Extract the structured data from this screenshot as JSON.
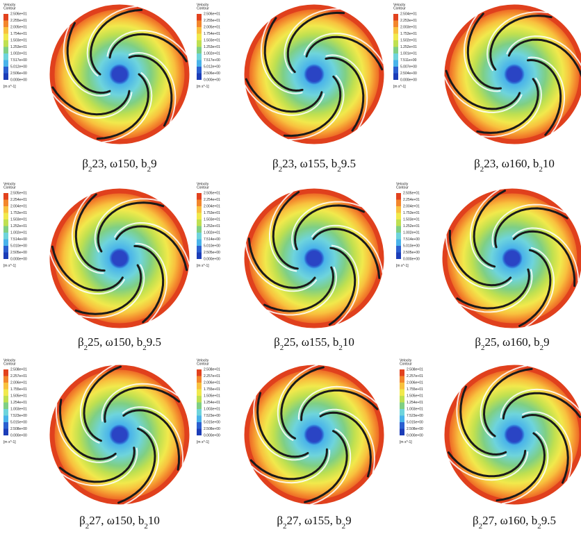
{
  "panels": [
    {
      "caption": [
        "β",
        "2",
        "23, ω150, b",
        "2",
        "9"
      ],
      "legend": {
        "title": [
          "Velocity",
          "Contour"
        ],
        "ticks": [
          "2.506e+01",
          "2.255e+01",
          "2.005e+01",
          "1.754e+01",
          "1.503e+01",
          "1.253e+01",
          "1.002e+01",
          "7.517e+00",
          "5.012e+00",
          "2.506e+00",
          "0.000e+00"
        ],
        "unit": "[m s^-1]"
      }
    },
    {
      "caption": [
        "β",
        "2",
        "23, ω155, b",
        "2",
        "9.5"
      ],
      "legend": {
        "title": [
          "Velocity",
          "Contour"
        ],
        "ticks": [
          "2.506e+01",
          "2.255e+01",
          "2.005e+01",
          "1.754e+01",
          "1.503e+01",
          "1.253e+01",
          "1.002e+01",
          "7.517e+00",
          "5.012e+00",
          "2.506e+00",
          "0.000e+00"
        ],
        "unit": "[m s^-1]"
      }
    },
    {
      "caption": [
        "β",
        "2",
        "23, ω160, b",
        "2",
        "10"
      ],
      "legend": {
        "title": [
          "Velocity",
          "Contour"
        ],
        "ticks": [
          "2.504e+01",
          "2.253e+01",
          "2.003e+01",
          "1.753e+01",
          "1.502e+01",
          "1.252e+01",
          "1.001e+01",
          "7.511e+00",
          "5.007e+00",
          "2.504e+00",
          "0.000e+00"
        ],
        "unit": "[m s^-1]"
      }
    },
    {
      "caption": [
        "β",
        "2",
        "25, ω150, b",
        "2",
        "9.5"
      ],
      "legend": {
        "title": [
          "Velocity",
          "Contour"
        ],
        "ticks": [
          "2.505e+01",
          "2.254e+01",
          "2.004e+01",
          "1.753e+01",
          "1.503e+01",
          "1.252e+01",
          "1.002e+01",
          "7.514e+00",
          "5.010e+00",
          "2.505e+00",
          "0.000e+00"
        ],
        "unit": "[m s^-1]"
      }
    },
    {
      "caption": [
        "β",
        "2",
        "25, ω155, b",
        "2",
        "10"
      ],
      "legend": {
        "title": [
          "Velocity",
          "Contour"
        ],
        "ticks": [
          "2.505e+01",
          "2.254e+01",
          "2.004e+01",
          "1.753e+01",
          "1.503e+01",
          "1.252e+01",
          "1.002e+01",
          "7.514e+00",
          "5.010e+00",
          "2.505e+00",
          "0.000e+00"
        ],
        "unit": "[m s^-1]"
      }
    },
    {
      "caption": [
        "β",
        "2",
        "25, ω160, b",
        "2",
        "9"
      ],
      "legend": {
        "title": [
          "Velocity",
          "Contour"
        ],
        "ticks": [
          "2.505e+01",
          "2.254e+01",
          "2.004e+01",
          "1.753e+01",
          "1.503e+01",
          "1.252e+01",
          "1.002e+01",
          "7.514e+00",
          "5.010e+00",
          "2.505e+00",
          "0.000e+00"
        ],
        "unit": "[m s^-1]"
      }
    },
    {
      "caption": [
        "β",
        "2",
        "27, ω150, b",
        "2",
        "10"
      ],
      "legend": {
        "title": [
          "Velocity",
          "Contour"
        ],
        "ticks": [
          "2.508e+01",
          "2.257e+01",
          "2.006e+01",
          "1.755e+01",
          "1.505e+01",
          "1.254e+01",
          "1.003e+01",
          "7.523e+00",
          "5.015e+00",
          "2.508e+00",
          "0.000e+00"
        ],
        "unit": "[m s^-1]"
      }
    },
    {
      "caption": [
        "β",
        "2",
        "27, ω155, b",
        "2",
        "9"
      ],
      "legend": {
        "title": [
          "Velocity",
          "Contour"
        ],
        "ticks": [
          "2.508e+01",
          "2.257e+01",
          "2.006e+01",
          "1.755e+01",
          "1.505e+01",
          "1.254e+01",
          "1.003e+01",
          "7.523e+00",
          "5.015e+00",
          "2.508e+00",
          "0.000e+00"
        ],
        "unit": "[m s^-1]"
      }
    },
    {
      "caption": [
        "β",
        "2",
        "27, ω160, b",
        "2",
        "9.5"
      ],
      "legend": {
        "title": [
          "Velocity",
          "Contour"
        ],
        "ticks": [
          "2.508e+01",
          "2.257e+01",
          "2.006e+01",
          "1.755e+01",
          "1.505e+01",
          "1.254e+01",
          "1.003e+01",
          "7.523e+00",
          "5.015e+00",
          "2.508e+00",
          "0.000e+00"
        ],
        "unit": "[m s^-1]"
      }
    }
  ]
}
